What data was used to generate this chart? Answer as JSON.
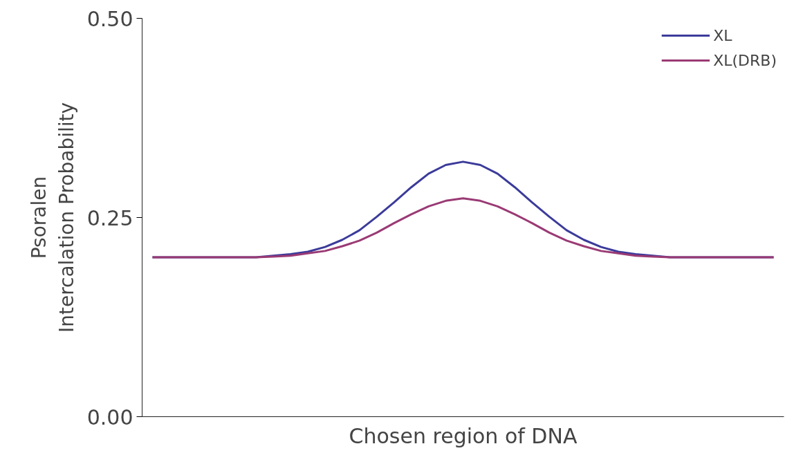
{
  "chart_data": {
    "type": "line",
    "xlabel": "Chosen region of DNA",
    "ylabel": "Psoralen\nIntercalation Probability",
    "categories": [
      null,
      null,
      null,
      null,
      null,
      null,
      null,
      null,
      null,
      null,
      null,
      null,
      null,
      null,
      null,
      null,
      null,
      null,
      null,
      null,
      null,
      null,
      null,
      null,
      null,
      null,
      null,
      null,
      null,
      null,
      null,
      null,
      null,
      null,
      null,
      null,
      null
    ],
    "series": [
      {
        "name": "XL",
        "color": "#3b3b9a",
        "values": [
          0.2,
          0.2,
          0.2,
          0.2,
          0.2,
          0.2,
          0.2,
          0.202,
          0.204,
          0.207,
          0.213,
          0.222,
          0.234,
          0.251,
          0.269,
          0.288,
          0.305,
          0.316,
          0.32,
          0.316,
          0.305,
          0.288,
          0.269,
          0.251,
          0.234,
          0.222,
          0.213,
          0.207,
          0.204,
          0.202,
          0.2,
          0.2,
          0.2,
          0.2,
          0.2,
          0.2,
          0.2
        ]
      },
      {
        "name": "XL(DRB)",
        "color": "#9a3a74",
        "values": [
          0.2,
          0.2,
          0.2,
          0.2,
          0.2,
          0.2,
          0.2,
          0.201,
          0.202,
          0.205,
          0.208,
          0.214,
          0.221,
          0.231,
          0.243,
          0.254,
          0.264,
          0.271,
          0.274,
          0.271,
          0.264,
          0.254,
          0.243,
          0.231,
          0.221,
          0.214,
          0.208,
          0.205,
          0.202,
          0.201,
          0.2,
          0.2,
          0.2,
          0.2,
          0.2,
          0.2,
          0.2
        ]
      }
    ],
    "ylim": [
      0,
      0.5
    ],
    "yticks": [
      {
        "value": 0,
        "label": "0.00"
      },
      {
        "value": 0.25,
        "label": "0.25"
      },
      {
        "value": 0.5,
        "label": "0.50"
      }
    ],
    "tick_labels": "y",
    "grid": false,
    "legend": "top right",
    "marker": "none",
    "line_style": "solid"
  }
}
